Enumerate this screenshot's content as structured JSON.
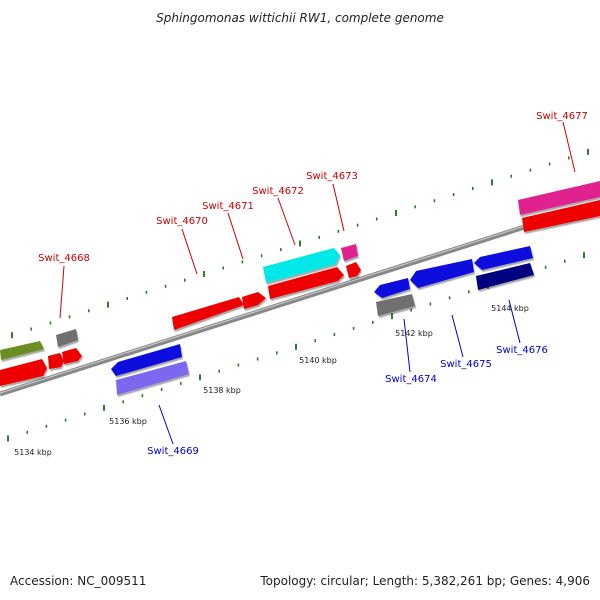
{
  "title": "Sphingomonas wittichii RW1, complete genome",
  "footer": {
    "accession": "Accession: NC_009511",
    "summary": "Topology: circular; Length: 5,382,261 bp; Genes: 4,906"
  },
  "colors": {
    "top_label": "#cc0000",
    "bottom_label": "#0000cc",
    "tick": "#2e7d2e",
    "backbone": "#888888"
  },
  "scale_labels": [
    {
      "id": "kbp-5134",
      "text": "5134 kbp"
    },
    {
      "id": "kbp-5136",
      "text": "5136 kbp"
    },
    {
      "id": "kbp-5138",
      "text": "5138 kbp"
    },
    {
      "id": "kbp-5140",
      "text": "5140 kbp"
    },
    {
      "id": "kbp-5142",
      "text": "5142 kbp"
    },
    {
      "id": "kbp-5144",
      "text": "5144 kbp"
    }
  ],
  "gene_labels": [
    {
      "id": "swit-4668",
      "text": "Swit_4668",
      "strand": "top"
    },
    {
      "id": "swit-4670",
      "text": "Swit_4670",
      "strand": "top"
    },
    {
      "id": "swit-4671",
      "text": "Swit_4671",
      "strand": "top"
    },
    {
      "id": "swit-4672",
      "text": "Swit_4672",
      "strand": "top"
    },
    {
      "id": "swit-4673",
      "text": "Swit_4673",
      "strand": "top"
    },
    {
      "id": "swit-4677",
      "text": "Swit_4677",
      "strand": "top"
    },
    {
      "id": "swit-4669",
      "text": "Swit_4669",
      "strand": "bottom"
    },
    {
      "id": "swit-4674",
      "text": "Swit_4674",
      "strand": "bottom"
    },
    {
      "id": "swit-4675",
      "text": "Swit_4675",
      "strand": "bottom"
    },
    {
      "id": "swit-4676",
      "text": "Swit_4676",
      "strand": "bottom"
    }
  ]
}
